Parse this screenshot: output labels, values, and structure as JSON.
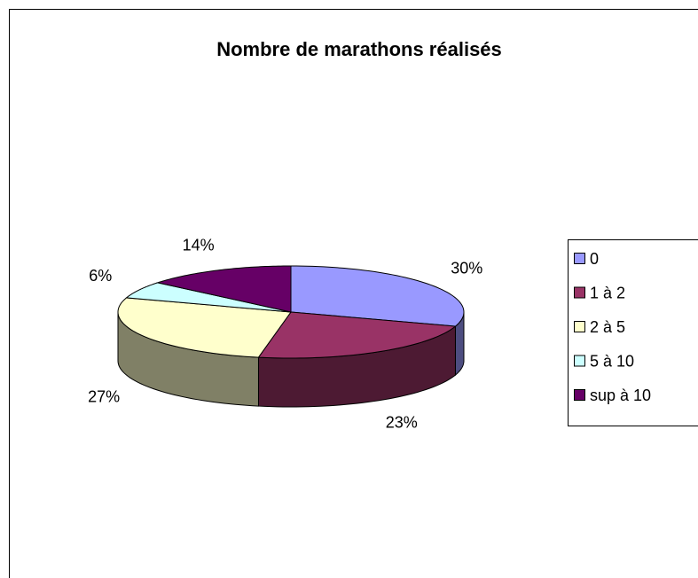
{
  "chart_data": {
    "type": "pie",
    "title": "Nombre de marathons réalisés",
    "categories": [
      "0",
      "1 à 2",
      "2 à 5",
      "5 à 10",
      "sup à 10"
    ],
    "values": [
      30,
      23,
      27,
      6,
      14
    ],
    "value_labels": [
      "30%",
      "23%",
      "27%",
      "6%",
      "14%"
    ],
    "colors": [
      "#9999ff",
      "#993366",
      "#ffffcc",
      "#ccffff",
      "#660066"
    ],
    "legend": "right"
  }
}
